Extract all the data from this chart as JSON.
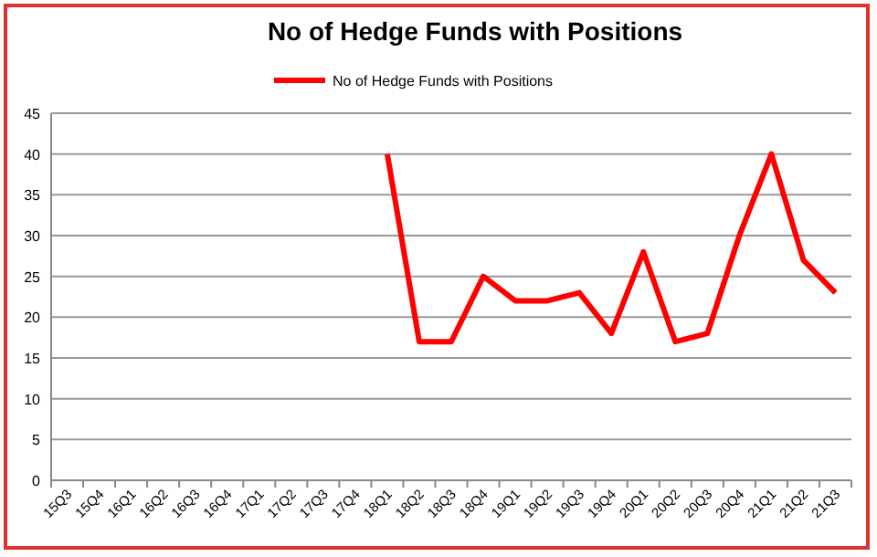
{
  "chart_data": {
    "type": "line",
    "title": "No of Hedge Funds with Positions",
    "categories": [
      "15Q3",
      "15Q4",
      "16Q1",
      "16Q2",
      "16Q3",
      "16Q4",
      "17Q1",
      "17Q2",
      "17Q3",
      "17Q4",
      "18Q1",
      "18Q2",
      "18Q3",
      "18Q4",
      "19Q1",
      "19Q2",
      "19Q3",
      "19Q4",
      "20Q1",
      "20Q2",
      "20Q3",
      "20Q4",
      "21Q1",
      "21Q2",
      "21Q3"
    ],
    "series": [
      {
        "name": "No of Hedge Funds with Positions",
        "color": "#ff0000",
        "values": [
          null,
          null,
          null,
          null,
          null,
          null,
          null,
          null,
          null,
          null,
          40,
          17,
          17,
          25,
          22,
          22,
          23,
          18,
          28,
          17,
          18,
          30,
          40,
          27,
          23
        ]
      }
    ],
    "ylim": [
      0,
      45
    ],
    "yticks": [
      0,
      5,
      10,
      15,
      20,
      25,
      30,
      35,
      40,
      45
    ],
    "grid": "y",
    "legend": "top",
    "marker": "none",
    "line_style": "solid"
  }
}
